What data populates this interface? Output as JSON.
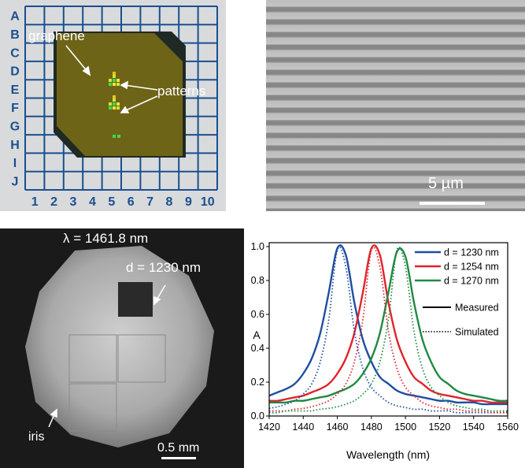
{
  "panel_a": {
    "row_labels": [
      "A",
      "B",
      "C",
      "D",
      "E",
      "F",
      "G",
      "H",
      "I",
      "J"
    ],
    "col_labels": [
      "1",
      "2",
      "3",
      "4",
      "5",
      "6",
      "7",
      "8",
      "9",
      "10"
    ],
    "label_graphene": "graphene",
    "label_patterns": "patterns",
    "grid_color": "#1a4f8f",
    "chip_color": "#6e6418"
  },
  "panel_b": {
    "scale_label": "5 µm"
  },
  "panel_c": {
    "wavelength_label": "λ = 1461.8 nm",
    "d_label": "d = 1230 nm",
    "iris_label": "iris",
    "scale_label": "0.5 mm"
  },
  "chart_data": {
    "type": "line",
    "xlabel": "Wavelength (nm)",
    "ylabel": "A",
    "xlim": [
      1420,
      1560
    ],
    "ylim": [
      0,
      1.0
    ],
    "xticks": [
      1420,
      1440,
      1460,
      1480,
      1500,
      1520,
      1540,
      1560
    ],
    "yticks": [
      0.0,
      0.2,
      0.4,
      0.6,
      0.8,
      1.0
    ],
    "ytick_labels": [
      "0.0",
      "0.2",
      "0.4",
      "0.6",
      "0.8",
      "1.0"
    ],
    "legend_position": "top-right",
    "style_legend": [
      {
        "name": "Measured",
        "style": "solid"
      },
      {
        "name": "Simulated",
        "style": "dotted"
      }
    ],
    "x": [
      1420,
      1425,
      1430,
      1435,
      1440,
      1445,
      1450,
      1455,
      1460,
      1465,
      1470,
      1475,
      1480,
      1485,
      1490,
      1495,
      1500,
      1505,
      1510,
      1515,
      1520,
      1525,
      1530,
      1535,
      1540,
      1545,
      1550,
      1555,
      1560
    ],
    "series": [
      {
        "name": "d = 1230 nm",
        "color": "#1f4ea1",
        "style": "solid",
        "values": [
          0.12,
          0.14,
          0.16,
          0.19,
          0.25,
          0.34,
          0.49,
          0.73,
          0.99,
          0.95,
          0.67,
          0.45,
          0.32,
          0.23,
          0.19,
          0.15,
          0.13,
          0.12,
          0.11,
          0.1,
          0.09,
          0.09,
          0.08,
          0.08,
          0.08,
          0.07,
          0.07,
          0.07,
          0.07
        ]
      },
      {
        "name": "d = 1254 nm",
        "color": "#e0242c",
        "style": "solid",
        "values": [
          0.09,
          0.09,
          0.1,
          0.11,
          0.12,
          0.14,
          0.16,
          0.19,
          0.25,
          0.34,
          0.49,
          0.73,
          0.99,
          0.95,
          0.67,
          0.45,
          0.32,
          0.23,
          0.19,
          0.15,
          0.13,
          0.12,
          0.11,
          0.1,
          0.09,
          0.09,
          0.08,
          0.08,
          0.08
        ]
      },
      {
        "name": "d = 1270 nm",
        "color": "#1e8a43",
        "style": "solid",
        "values": [
          0.08,
          0.08,
          0.08,
          0.09,
          0.09,
          0.1,
          0.11,
          0.12,
          0.14,
          0.16,
          0.19,
          0.25,
          0.34,
          0.49,
          0.73,
          0.97,
          0.94,
          0.67,
          0.45,
          0.32,
          0.23,
          0.19,
          0.15,
          0.13,
          0.12,
          0.11,
          0.1,
          0.09,
          0.09
        ]
      },
      {
        "name": "d = 1230 nm (sim)",
        "color": "#1f4ea1",
        "style": "dotted",
        "values": [
          0.045,
          0.055,
          0.07,
          0.09,
          0.13,
          0.19,
          0.32,
          0.57,
          0.98,
          0.88,
          0.5,
          0.28,
          0.17,
          0.12,
          0.08,
          0.06,
          0.05,
          0.04,
          0.04,
          0.03,
          0.03,
          0.03,
          0.02,
          0.02,
          0.02,
          0.02,
          0.02,
          0.02,
          0.02
        ]
      },
      {
        "name": "d = 1254 nm (sim)",
        "color": "#e0242c",
        "style": "dotted",
        "values": [
          0.03,
          0.03,
          0.03,
          0.04,
          0.045,
          0.055,
          0.07,
          0.09,
          0.13,
          0.19,
          0.32,
          0.57,
          0.98,
          0.88,
          0.5,
          0.28,
          0.17,
          0.12,
          0.08,
          0.06,
          0.05,
          0.04,
          0.04,
          0.03,
          0.03,
          0.03,
          0.02,
          0.02,
          0.02
        ]
      },
      {
        "name": "d = 1270 nm (sim)",
        "color": "#1e8a43",
        "style": "dotted",
        "values": [
          0.02,
          0.02,
          0.03,
          0.03,
          0.03,
          0.03,
          0.04,
          0.045,
          0.055,
          0.07,
          0.09,
          0.13,
          0.19,
          0.32,
          0.57,
          0.98,
          0.88,
          0.5,
          0.28,
          0.17,
          0.12,
          0.08,
          0.06,
          0.05,
          0.04,
          0.04,
          0.03,
          0.03,
          0.03
        ]
      }
    ]
  }
}
